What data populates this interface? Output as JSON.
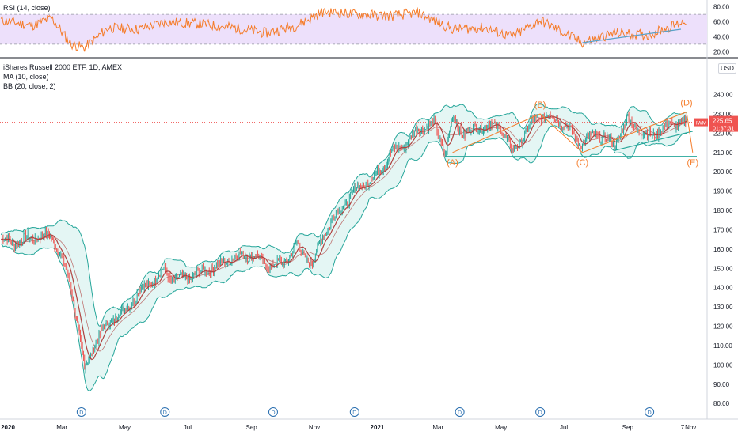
{
  "rsi_panel": {
    "legend": "RSI (14, close)",
    "ticks": [
      "80.00",
      "60.00",
      "40.00",
      "20.00"
    ],
    "tick_values": [
      80,
      60,
      40,
      20
    ],
    "ylim": [
      15,
      85
    ],
    "upper_band": 70,
    "lower_band": 30,
    "colors": {
      "line": "#f57c2a",
      "band_fill": "#ede0fb",
      "trendline": "#5aa1c8"
    }
  },
  "price_panel": {
    "legend_lines": [
      "iShares Russell 2000 ETF, 1D, AMEX",
      "MA (10, close)",
      "BB (20, close, 2)"
    ],
    "currency_badge": "USD",
    "price_tag": {
      "symbol": "IWM",
      "price": "225.65",
      "time": "01:37:31"
    },
    "ylim": [
      76,
      248
    ],
    "ticks": [
      "240.00",
      "230.00",
      "220.00",
      "210.00",
      "200.00",
      "190.00",
      "180.00",
      "170.00",
      "160.00",
      "150.00",
      "140.00",
      "130.00",
      "120.00",
      "110.00",
      "100.00",
      "90.00",
      "80.00"
    ],
    "tick_values": [
      240,
      230,
      220,
      210,
      200,
      190,
      180,
      170,
      160,
      150,
      140,
      130,
      120,
      110,
      100,
      90,
      80
    ],
    "colors": {
      "up": "#26a69a",
      "down": "#ef5350",
      "ma": "#b0413e",
      "bb": "#26a69a",
      "bb_fill": "#d9f2ef",
      "wave": "#f57c2a",
      "support": "#26a69a",
      "last_price": "#ef5350"
    },
    "wave_labels": [
      "(A)",
      "(B)",
      "(C)",
      "(D)",
      "(E)"
    ],
    "dividend_marker": "D"
  },
  "time_axis": {
    "labels": [
      "2020",
      "Mar",
      "May",
      "Jul",
      "Sep",
      "Nov",
      "2021",
      "Mar",
      "May",
      "Jul",
      "Sep",
      "Nov",
      "7"
    ]
  },
  "chart_data": {
    "type": "candlestick",
    "title": "iShares Russell 2000 ETF, 1D, AMEX",
    "x_range": [
      "2020-01-01",
      "2021-11-07"
    ],
    "ylim": [
      76,
      248
    ],
    "series": [
      {
        "name": "iShares Russell 2000 ETF",
        "x": [
          "2020-01-02",
          "2020-01-15",
          "2020-02-01",
          "2020-02-20",
          "2020-03-01",
          "2020-03-10",
          "2020-03-18",
          "2020-03-23",
          "2020-04-01",
          "2020-04-15",
          "2020-05-01",
          "2020-05-15",
          "2020-06-01",
          "2020-06-09",
          "2020-06-15",
          "2020-07-01",
          "2020-07-15",
          "2020-08-01",
          "2020-08-15",
          "2020-09-01",
          "2020-09-15",
          "2020-10-01",
          "2020-10-15",
          "2020-10-30",
          "2020-11-10",
          "2020-11-25",
          "2020-12-10",
          "2020-12-31",
          "2021-01-15",
          "2021-01-27",
          "2021-02-10",
          "2021-02-25",
          "2021-03-08",
          "2021-03-15",
          "2021-03-25",
          "2021-04-15",
          "2021-05-01",
          "2021-05-12",
          "2021-06-01",
          "2021-06-08",
          "2021-06-25",
          "2021-07-19",
          "2021-08-01",
          "2021-08-19",
          "2021-09-01",
          "2021-09-20",
          "2021-10-15",
          "2021-10-28"
        ],
        "values": [
          165,
          163,
          166,
          167,
          155,
          140,
          115,
          98,
          110,
          122,
          128,
          138,
          145,
          150,
          144,
          145,
          148,
          152,
          156,
          157,
          152,
          152,
          162,
          152,
          168,
          180,
          190,
          198,
          210,
          214,
          222,
          225,
          210,
          228,
          220,
          224,
          223,
          210,
          226,
          229,
          228,
          214,
          220,
          214,
          227,
          218,
          225,
          226
        ]
      },
      {
        "name": "RSI (14, close)",
        "x": [
          "2020-01-02",
          "2020-02-01",
          "2020-02-20",
          "2020-03-10",
          "2020-03-23",
          "2020-04-15",
          "2020-05-15",
          "2020-06-09",
          "2020-07-15",
          "2020-08-15",
          "2020-09-15",
          "2020-10-15",
          "2020-11-10",
          "2020-12-10",
          "2021-01-15",
          "2021-02-10",
          "2021-03-15",
          "2021-04-15",
          "2021-05-12",
          "2021-06-08",
          "2021-07-19",
          "2021-08-19",
          "2021-09-20",
          "2021-10-28"
        ],
        "values": [
          62,
          55,
          65,
          30,
          25,
          52,
          50,
          60,
          57,
          52,
          45,
          55,
          74,
          70,
          68,
          72,
          50,
          52,
          40,
          62,
          32,
          45,
          42,
          62
        ]
      }
    ],
    "annotations": [
      {
        "label": "(A)",
        "x": "2021-03-15",
        "y": 210
      },
      {
        "label": "(B)",
        "x": "2021-06-08",
        "y": 230
      },
      {
        "label": "(C)",
        "x": "2021-07-19",
        "y": 210
      },
      {
        "label": "(D)",
        "x": "2021-10-28",
        "y": 231
      },
      {
        "label": "(E)",
        "x": "2021-11-03",
        "y": 210
      }
    ]
  }
}
